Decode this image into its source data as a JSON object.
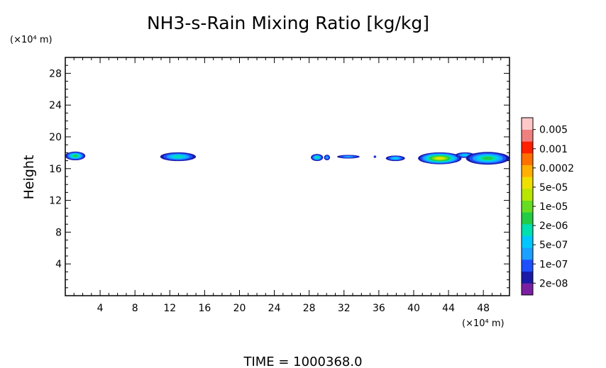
{
  "chart_data": {
    "type": "heatmap",
    "title": "NH3-s-Rain Mixing Ratio [kg/kg]",
    "ylabel": "Height",
    "x_unit": "(×10⁴ m)",
    "y_unit": "(×10⁴ m)",
    "footer": "TIME = 1000368.0",
    "xlim": [
      0,
      51
    ],
    "ylim": [
      0,
      30
    ],
    "x_ticks": [
      4,
      8,
      12,
      16,
      20,
      24,
      28,
      32,
      36,
      40,
      44,
      48
    ],
    "y_ticks": [
      4,
      8,
      12,
      16,
      20,
      24,
      28
    ],
    "colorbar": {
      "labels": [
        "0.005",
        "0.001",
        "0.0002",
        "5e-05",
        "1e-05",
        "2e-06",
        "5e-07",
        "1e-07",
        "2e-08"
      ],
      "colors": [
        "#7b1fa2",
        "#1a1aa6",
        "#1e4fff",
        "#1aa0ff",
        "#00c8ff",
        "#00e0b0",
        "#22cc44",
        "#66dd22",
        "#b8e600",
        "#f0e000",
        "#ffb000",
        "#ff7000",
        "#ff2000",
        "#f08080",
        "#ffc8c8"
      ]
    },
    "blobs": [
      {
        "x0": 0.0,
        "x1": 2.3,
        "yc": 17.6,
        "h": 1.1,
        "peak": 6
      },
      {
        "x0": 10.9,
        "x1": 15.0,
        "yc": 17.5,
        "h": 1.1,
        "peak": 5
      },
      {
        "x0": 28.2,
        "x1": 29.6,
        "yc": 17.4,
        "h": 0.9,
        "peak": 5
      },
      {
        "x0": 29.7,
        "x1": 30.4,
        "yc": 17.4,
        "h": 0.7,
        "peak": 3
      },
      {
        "x0": 31.2,
        "x1": 33.8,
        "yc": 17.5,
        "h": 0.45,
        "peak": 3
      },
      {
        "x0": 35.4,
        "x1": 35.7,
        "yc": 17.5,
        "h": 0.3,
        "peak": 2
      },
      {
        "x0": 36.8,
        "x1": 39.0,
        "yc": 17.3,
        "h": 0.7,
        "peak": 4
      },
      {
        "x0": 40.5,
        "x1": 45.5,
        "yc": 17.3,
        "h": 1.5,
        "peak": 9
      },
      {
        "x0": 44.8,
        "x1": 47.0,
        "yc": 17.7,
        "h": 0.7,
        "peak": 4
      },
      {
        "x0": 46.0,
        "x1": 51.0,
        "yc": 17.3,
        "h": 1.6,
        "peak": 6
      }
    ]
  }
}
